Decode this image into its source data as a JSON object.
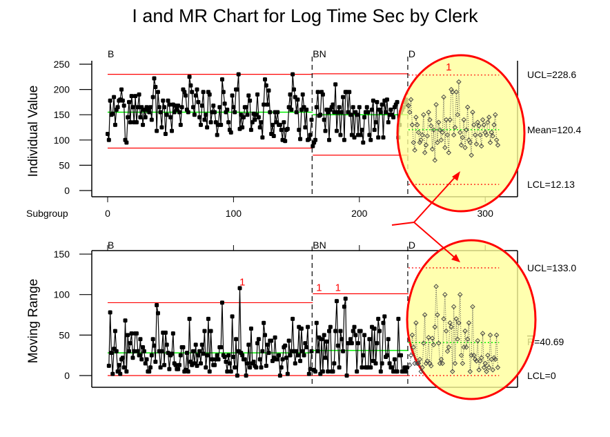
{
  "chart_data": {
    "type": "line",
    "title": "I and MR Chart for Log Time Sec by Clerk",
    "xlabel": "Subgroup",
    "x_ticks": [
      "0",
      "100",
      "200",
      "300"
    ],
    "x_tick_values": [
      0,
      100,
      200,
      300
    ],
    "panels": [
      {
        "name": "individual",
        "ylabel": "Individual Value",
        "y_ticks": [
          "0",
          "50",
          "100",
          "150",
          "200",
          "250"
        ],
        "y_tick_values": [
          0,
          50,
          100,
          150,
          200,
          250
        ],
        "ylim": [
          0,
          250
        ],
        "labels": {
          "ucl": "UCL=228.6",
          "center": "Mean=120.4",
          "lcl": "LCL=12.13"
        },
        "flags": [
          {
            "x": 271,
            "y": 232,
            "text": "1"
          }
        ]
      },
      {
        "name": "moving_range",
        "ylabel": "Moving Range",
        "y_ticks": [
          "0",
          "50",
          "100",
          "150"
        ],
        "y_tick_values": [
          0,
          50,
          100,
          150
        ],
        "ylim": [
          0,
          150
        ],
        "labels": {
          "ucl": "UCL=133.0",
          "center_bar": "R",
          "center": "=40.69",
          "lcl": "LCL=0"
        },
        "flags": [
          {
            "x": 107,
            "y": 108,
            "text": "1"
          },
          {
            "x": 168,
            "y": 101,
            "text": "1"
          },
          {
            "x": 183,
            "y": 101,
            "text": "1"
          }
        ]
      }
    ],
    "stages": [
      {
        "name": "B",
        "start": 0,
        "i_limits": {
          "ucl": 230,
          "center": 155,
          "lcl": 84
        },
        "mr_limits": {
          "ucl": 90,
          "center": 28,
          "lcl": 0
        },
        "values": [
          112,
          100,
          178,
          150,
          152,
          185,
          130,
          160,
          165,
          178,
          180,
          200,
          178,
          168,
          100,
          95,
          145,
          175,
          135,
          187,
          165,
          135,
          187,
          135,
          165,
          190,
          145,
          165,
          130,
          160,
          145,
          165,
          160,
          155,
          165,
          140,
          185,
          222,
          205,
          118,
          195,
          165,
          155,
          125,
          178,
          165,
          112,
          150,
          178,
          170,
          145,
          118,
          170,
          155,
          168,
          160,
          168,
          155,
          130,
          165,
          200,
          195,
          188,
          160,
          155,
          225,
          208,
          195,
          165,
          150,
          188,
          200,
          175,
          145,
          130,
          168,
          195,
          140,
          150,
          125,
          195,
          190,
          135,
          155,
          168,
          155,
          135,
          110,
          130,
          165,
          130,
          220,
          195,
          172,
          155,
          160,
          135,
          120,
          115,
          188,
          165,
          155,
          200,
          200,
          230,
          122,
          150,
          125,
          145,
          165,
          165,
          150,
          188,
          178,
          120,
          135,
          152,
          140,
          150,
          190,
          145,
          125,
          135,
          105,
          170,
          220,
          208,
          170,
          198,
          155,
          112,
          130,
          108,
          155,
          135,
          155,
          130,
          130,
          120,
          100,
          135,
          98,
          120,
          122,
          165,
          190,
          160,
          230,
          200,
          185,
          155,
          180,
          120,
          102,
          160,
          190,
          165,
          125,
          160,
          100,
          102,
          110,
          140
        ]
      },
      {
        "name": "BN",
        "start": 163,
        "i_limits": {
          "ucl": 231,
          "center": 150,
          "lcl": 70
        },
        "mr_limits": {
          "ucl": 101,
          "center": 31,
          "lcl": 0
        },
        "values": [
          88,
          95,
          100,
          165,
          195,
          148,
          150,
          195,
          190,
          140,
          118,
          160,
          155,
          100,
          160,
          165,
          170,
          155,
          210,
          118,
          155,
          165,
          110,
          155,
          185,
          100,
          195,
          195,
          155,
          195,
          150,
          110,
          165,
          105,
          155,
          150,
          110,
          165,
          110,
          120,
          95,
          145,
          155,
          165,
          155,
          110,
          100,
          160,
          178,
          120,
          135,
          175,
          105,
          160,
          155,
          170,
          105,
          178,
          155,
          180,
          135,
          150,
          160,
          150,
          145,
          165,
          170,
          175,
          105,
          130,
          155,
          160,
          165,
          175,
          180,
          170
        ]
      },
      {
        "name": "D",
        "start": 239,
        "i_limits": {
          "ucl": 228.6,
          "center": 120.4,
          "lcl": 12.13
        },
        "mr_limits": {
          "ucl": 133.0,
          "center": 40.69,
          "lcl": 0
        },
        "values": [
          168,
          155,
          180,
          130,
          95,
          80,
          145,
          130,
          115,
          95,
          100,
          110,
          150,
          75,
          90,
          108,
          155,
          140,
          128,
          82,
          120,
          60,
          170,
          95,
          135,
          120,
          100,
          115,
          185,
          85,
          140,
          110,
          75,
          140,
          200,
          195,
          110,
          125,
          195,
          150,
          215,
          115,
          90,
          105,
          140,
          85,
          120,
          165,
          100,
          95,
          70,
          155,
          130,
          110,
          92,
          135,
          128,
          110,
          88,
          140,
          130,
          115,
          110,
          135,
          145,
          95,
          115,
          108,
          130,
          150,
          100,
          90
        ]
      }
    ],
    "grid": false,
    "legend": "none"
  },
  "colors": {
    "limit": "#ff0000",
    "center": "#00ee00",
    "highlight_fill": "#ffff99",
    "highlight_stroke": "#ff0000",
    "points": "#000000",
    "faded_points": "#444444"
  }
}
